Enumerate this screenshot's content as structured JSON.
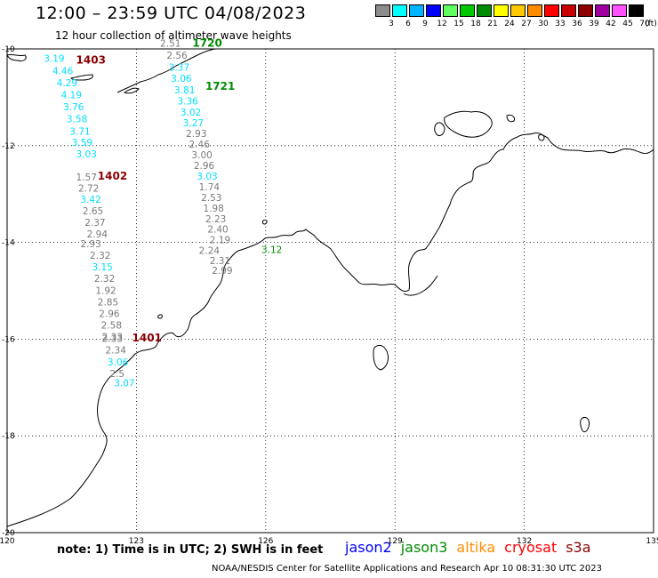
{
  "header": {
    "title": "12:00 – 23:59 UTC 04/08/2023",
    "subtitle": "12 hour collection of altimeter wave heights"
  },
  "scale": {
    "unit": "(ft)",
    "bins": [
      {
        "label": "3",
        "color": "#8c8c8c"
      },
      {
        "label": "6",
        "color": "#00ffff"
      },
      {
        "label": "9",
        "color": "#00b4ff"
      },
      {
        "label": "12",
        "color": "#0000ff"
      },
      {
        "label": "15",
        "color": "#60ff60"
      },
      {
        "label": "18",
        "color": "#00c800"
      },
      {
        "label": "21",
        "color": "#008c00"
      },
      {
        "label": "24",
        "color": "#ffff00"
      },
      {
        "label": "27",
        "color": "#ffc800"
      },
      {
        "label": "30",
        "color": "#ff8c00"
      },
      {
        "label": "33",
        "color": "#ff0000"
      },
      {
        "label": "36",
        "color": "#c80000"
      },
      {
        "label": "39",
        "color": "#8c0000"
      },
      {
        "label": "42",
        "color": "#a000a0"
      },
      {
        "label": "45",
        "color": "#ff50ff"
      },
      {
        "label": "70",
        "color": "#000000"
      }
    ]
  },
  "map": {
    "lon_range": [
      120,
      135
    ],
    "lat_range": [
      -20,
      -10
    ],
    "lon_ticks": [
      "120",
      "123",
      "126",
      "129",
      "132",
      "135"
    ],
    "lat_ticks": [
      "-10",
      "-12",
      "-14",
      "-16",
      "-18",
      "-20"
    ],
    "gridlines": true,
    "colors": {
      "gray": "#7a7a7a",
      "cyan": "#00e0ff",
      "green": "#008c00",
      "darkred": "#8c0000"
    },
    "pass_labels": [
      {
        "text": "1403",
        "lon": 121.6,
        "lat": -10.3,
        "color": "darkred"
      },
      {
        "text": "1720",
        "lon": 124.3,
        "lat": -9.95,
        "color": "green"
      },
      {
        "text": "1721",
        "lon": 124.6,
        "lat": -10.85,
        "color": "green"
      },
      {
        "text": "1402",
        "lon": 122.1,
        "lat": -12.7,
        "color": "darkred"
      },
      {
        "text": "1401",
        "lon": 122.9,
        "lat": -16.05,
        "color": "darkred"
      }
    ],
    "wave_heights": [
      {
        "text": "3.19",
        "lon": 120.85,
        "lat": -10.27,
        "c": "cyan"
      },
      {
        "text": "4.46",
        "lon": 121.05,
        "lat": -10.52,
        "c": "cyan"
      },
      {
        "text": "4.29",
        "lon": 121.15,
        "lat": -10.77,
        "c": "cyan"
      },
      {
        "text": "4.19",
        "lon": 121.25,
        "lat": -11.02,
        "c": "cyan"
      },
      {
        "text": "3.76",
        "lon": 121.3,
        "lat": -11.27,
        "c": "cyan"
      },
      {
        "text": "3.58",
        "lon": 121.38,
        "lat": -11.52,
        "c": "cyan"
      },
      {
        "text": "3.71",
        "lon": 121.45,
        "lat": -11.77,
        "c": "cyan"
      },
      {
        "text": "3.59",
        "lon": 121.5,
        "lat": -12.0,
        "c": "cyan"
      },
      {
        "text": "3.03",
        "lon": 121.6,
        "lat": -12.24,
        "c": "cyan"
      },
      {
        "text": "1.57",
        "lon": 121.6,
        "lat": -12.72,
        "c": "gray"
      },
      {
        "text": "2.72",
        "lon": 121.65,
        "lat": -12.95,
        "c": "gray"
      },
      {
        "text": "3.42",
        "lon": 121.7,
        "lat": -13.18,
        "c": "cyan"
      },
      {
        "text": "2.65",
        "lon": 121.75,
        "lat": -13.42,
        "c": "gray"
      },
      {
        "text": "2.37",
        "lon": 121.8,
        "lat": -13.66,
        "c": "gray"
      },
      {
        "text": "2.94",
        "lon": 121.85,
        "lat": -13.9,
        "c": "gray"
      },
      {
        "text": "2.93",
        "lon": 121.7,
        "lat": -14.1,
        "c": "gray"
      },
      {
        "text": "2.32",
        "lon": 121.92,
        "lat": -14.34,
        "c": "gray"
      },
      {
        "text": "3.15",
        "lon": 121.97,
        "lat": -14.58,
        "c": "cyan"
      },
      {
        "text": "2.32",
        "lon": 122.02,
        "lat": -14.82,
        "c": "gray"
      },
      {
        "text": "1.92",
        "lon": 122.05,
        "lat": -15.06,
        "c": "gray"
      },
      {
        "text": "2.85",
        "lon": 122.1,
        "lat": -15.3,
        "c": "gray"
      },
      {
        "text": "2.96",
        "lon": 122.13,
        "lat": -15.54,
        "c": "gray"
      },
      {
        "text": "2.58",
        "lon": 122.18,
        "lat": -15.78,
        "c": "gray"
      },
      {
        "text": "2.33",
        "lon": 122.2,
        "lat": -16.02,
        "c": "gray"
      },
      {
        "text": "2.33",
        "lon": 122.2,
        "lat": -16.06,
        "c": "gray"
      },
      {
        "text": "2.34",
        "lon": 122.28,
        "lat": -16.3,
        "c": "gray"
      },
      {
        "text": "3.06",
        "lon": 122.33,
        "lat": -16.54,
        "c": "cyan"
      },
      {
        "text": "2.5",
        "lon": 122.38,
        "lat": -16.78,
        "c": "gray"
      },
      {
        "text": "3.07",
        "lon": 122.48,
        "lat": -16.98,
        "c": "cyan"
      },
      {
        "text": "2.51",
        "lon": 123.55,
        "lat": -9.95,
        "c": "gray"
      },
      {
        "text": "2.56",
        "lon": 123.7,
        "lat": -10.2,
        "c": "gray"
      },
      {
        "text": "3.37",
        "lon": 123.75,
        "lat": -10.45,
        "c": "cyan"
      },
      {
        "text": "3.06",
        "lon": 123.8,
        "lat": -10.68,
        "c": "cyan"
      },
      {
        "text": "3.81",
        "lon": 123.88,
        "lat": -10.92,
        "c": "cyan"
      },
      {
        "text": "3.36",
        "lon": 123.95,
        "lat": -11.15,
        "c": "cyan"
      },
      {
        "text": "3.02",
        "lon": 124.02,
        "lat": -11.38,
        "c": "cyan"
      },
      {
        "text": "3.27",
        "lon": 124.08,
        "lat": -11.6,
        "c": "cyan"
      },
      {
        "text": "2.93",
        "lon": 124.15,
        "lat": -11.82,
        "c": "gray"
      },
      {
        "text": "2.46",
        "lon": 124.22,
        "lat": -12.04,
        "c": "gray"
      },
      {
        "text": "3.00",
        "lon": 124.28,
        "lat": -12.26,
        "c": "gray"
      },
      {
        "text": "2.96",
        "lon": 124.33,
        "lat": -12.48,
        "c": "gray"
      },
      {
        "text": "3.03",
        "lon": 124.4,
        "lat": -12.7,
        "c": "cyan"
      },
      {
        "text": "1.74",
        "lon": 124.45,
        "lat": -12.92,
        "c": "gray"
      },
      {
        "text": "2.53",
        "lon": 124.5,
        "lat": -13.14,
        "c": "gray"
      },
      {
        "text": "1.98",
        "lon": 124.55,
        "lat": -13.36,
        "c": "gray"
      },
      {
        "text": "2.23",
        "lon": 124.6,
        "lat": -13.58,
        "c": "gray"
      },
      {
        "text": "2.40",
        "lon": 124.65,
        "lat": -13.8,
        "c": "gray"
      },
      {
        "text": "2.19",
        "lon": 124.7,
        "lat": -14.02,
        "c": "gray"
      },
      {
        "text": "2.24",
        "lon": 124.45,
        "lat": -14.24,
        "c": "gray"
      },
      {
        "text": "2.31",
        "lon": 124.7,
        "lat": -14.45,
        "c": "gray"
      },
      {
        "text": "2.99",
        "lon": 124.75,
        "lat": -14.65,
        "c": "gray"
      },
      {
        "text": "3.12",
        "lon": 125.9,
        "lat": -14.22,
        "c": "green"
      }
    ]
  },
  "footer": {
    "note": "note:  1) Time is in UTC; 2) SWH is in feet",
    "legend": [
      {
        "label": "jason2",
        "color": "#0000ff"
      },
      {
        "label": "jason3",
        "color": "#008c00"
      },
      {
        "label": "altika",
        "color": "#ff8c00"
      },
      {
        "label": "cryosat",
        "color": "#ff0000"
      },
      {
        "label": "s3a",
        "color": "#8c0000"
      }
    ],
    "credit": "NOAA/NESDIS Center for Satellite Applications and Research     Apr 10 08:31:30 UTC 2023"
  }
}
